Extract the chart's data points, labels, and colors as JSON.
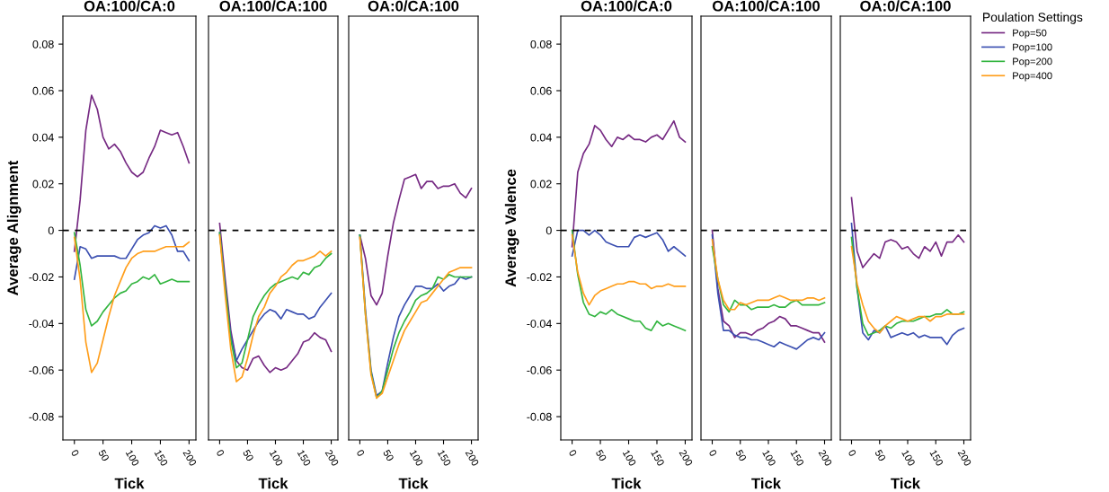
{
  "chart_data": [
    {
      "type": "line",
      "title": "OA:100/CA:0",
      "xlabel": "Tick",
      "ylabel": "Average Alignment",
      "x": [
        0,
        10,
        20,
        30,
        40,
        50,
        60,
        70,
        80,
        90,
        100,
        110,
        120,
        130,
        140,
        150,
        160,
        170,
        180,
        190,
        200
      ],
      "xlim": [
        -20,
        212
      ],
      "xticks": [
        0,
        50,
        100,
        150,
        200
      ],
      "ylim": [
        -0.09,
        0.092
      ],
      "yticks": [
        -0.08,
        -0.06,
        -0.04,
        -0.02,
        0,
        0.02,
        0.04,
        0.06,
        0.08
      ],
      "grid": false,
      "legend": false,
      "line_style": "solid",
      "ref_lines": [
        {
          "axis": "y",
          "value": 0,
          "color": "#000000",
          "line_style": "dashed"
        }
      ],
      "series": [
        {
          "color": "#762a83",
          "values": [
            -0.009,
            0.013,
            0.043,
            0.058,
            0.052,
            0.04,
            0.035,
            0.037,
            0.034,
            0.029,
            0.025,
            0.023,
            0.025,
            0.031,
            0.036,
            0.043,
            0.042,
            0.041,
            0.042,
            0.036,
            0.029
          ]
        },
        {
          "color": "#3c50b1",
          "values": [
            -0.021,
            -0.007,
            -0.008,
            -0.012,
            -0.011,
            -0.011,
            -0.011,
            -0.011,
            -0.012,
            -0.012,
            -0.008,
            -0.004,
            -0.002,
            -0.001,
            0.002,
            0.001,
            0.002,
            -0.002,
            -0.009,
            -0.009,
            -0.013
          ]
        },
        {
          "color": "#33b540",
          "values": [
            -0.001,
            -0.015,
            -0.034,
            -0.041,
            -0.039,
            -0.035,
            -0.032,
            -0.029,
            -0.027,
            -0.026,
            -0.023,
            -0.022,
            -0.02,
            -0.021,
            -0.019,
            -0.023,
            -0.022,
            -0.021,
            -0.022,
            -0.022,
            -0.022
          ]
        },
        {
          "color": "#ff9e1b",
          "values": [
            -0.003,
            -0.021,
            -0.048,
            -0.061,
            -0.057,
            -0.047,
            -0.037,
            -0.028,
            -0.022,
            -0.016,
            -0.012,
            -0.01,
            -0.009,
            -0.009,
            -0.009,
            -0.008,
            -0.007,
            -0.007,
            -0.007,
            -0.007,
            -0.005
          ]
        }
      ]
    },
    {
      "type": "line",
      "title": "OA:100/CA:100",
      "xlabel": "Tick",
      "x": [
        0,
        10,
        20,
        30,
        40,
        50,
        60,
        70,
        80,
        90,
        100,
        110,
        120,
        130,
        140,
        150,
        160,
        170,
        180,
        190,
        200
      ],
      "xlim": [
        -20,
        212
      ],
      "xticks": [
        0,
        50,
        100,
        150,
        200
      ],
      "ylim": [
        -0.09,
        0.092
      ],
      "tick_labels": "x",
      "grid": false,
      "legend": false,
      "line_style": "solid",
      "ref_lines": [
        {
          "axis": "y",
          "value": 0,
          "color": "#000000",
          "line_style": "dashed"
        }
      ],
      "series": [
        {
          "color": "#762a83",
          "values": [
            0.003,
            -0.021,
            -0.043,
            -0.056,
            -0.059,
            -0.06,
            -0.055,
            -0.054,
            -0.058,
            -0.061,
            -0.059,
            -0.06,
            -0.059,
            -0.056,
            -0.053,
            -0.048,
            -0.047,
            -0.044,
            -0.046,
            -0.047,
            -0.052
          ]
        },
        {
          "color": "#3c50b1",
          "values": [
            -0.001,
            -0.024,
            -0.045,
            -0.056,
            -0.051,
            -0.047,
            -0.043,
            -0.039,
            -0.036,
            -0.034,
            -0.035,
            -0.038,
            -0.034,
            -0.035,
            -0.036,
            -0.036,
            -0.038,
            -0.037,
            -0.033,
            -0.03,
            -0.027
          ]
        },
        {
          "color": "#33b540",
          "values": [
            -0.001,
            -0.025,
            -0.047,
            -0.059,
            -0.057,
            -0.047,
            -0.037,
            -0.032,
            -0.028,
            -0.025,
            -0.023,
            -0.022,
            -0.021,
            -0.02,
            -0.021,
            -0.018,
            -0.019,
            -0.016,
            -0.015,
            -0.012,
            -0.01
          ]
        },
        {
          "color": "#ff9e1b",
          "values": [
            -0.002,
            -0.028,
            -0.051,
            -0.065,
            -0.063,
            -0.055,
            -0.045,
            -0.037,
            -0.033,
            -0.027,
            -0.024,
            -0.02,
            -0.018,
            -0.015,
            -0.013,
            -0.013,
            -0.012,
            -0.011,
            -0.009,
            -0.011,
            -0.009
          ]
        }
      ]
    },
    {
      "type": "line",
      "title": "OA:0/CA:100",
      "xlabel": "Tick",
      "x": [
        0,
        10,
        20,
        30,
        40,
        50,
        60,
        70,
        80,
        90,
        100,
        110,
        120,
        130,
        140,
        150,
        160,
        170,
        180,
        190,
        200
      ],
      "xlim": [
        -20,
        212
      ],
      "xticks": [
        0,
        50,
        100,
        150,
        200
      ],
      "ylim": [
        -0.09,
        0.092
      ],
      "tick_labels": "x",
      "grid": false,
      "legend": false,
      "line_style": "solid",
      "ref_lines": [
        {
          "axis": "y",
          "value": 0,
          "color": "#000000",
          "line_style": "dashed"
        }
      ],
      "series": [
        {
          "color": "#762a83",
          "values": [
            -0.002,
            -0.012,
            -0.028,
            -0.032,
            -0.027,
            -0.011,
            0.003,
            0.013,
            0.022,
            0.023,
            0.024,
            0.018,
            0.021,
            0.021,
            0.018,
            0.019,
            0.019,
            0.02,
            0.016,
            0.014,
            0.018
          ]
        },
        {
          "color": "#3c50b1",
          "values": [
            -0.002,
            -0.034,
            -0.06,
            -0.071,
            -0.069,
            -0.057,
            -0.046,
            -0.037,
            -0.032,
            -0.028,
            -0.024,
            -0.024,
            -0.025,
            -0.025,
            -0.023,
            -0.026,
            -0.024,
            -0.023,
            -0.02,
            -0.021,
            -0.02
          ]
        },
        {
          "color": "#33b540",
          "values": [
            -0.002,
            -0.036,
            -0.061,
            -0.072,
            -0.069,
            -0.06,
            -0.051,
            -0.044,
            -0.039,
            -0.035,
            -0.03,
            -0.028,
            -0.027,
            -0.025,
            -0.02,
            -0.021,
            -0.019,
            -0.02,
            -0.02,
            -0.02,
            -0.02
          ]
        },
        {
          "color": "#ff9e1b",
          "values": [
            -0.003,
            -0.036,
            -0.062,
            -0.072,
            -0.07,
            -0.063,
            -0.056,
            -0.049,
            -0.043,
            -0.039,
            -0.035,
            -0.031,
            -0.03,
            -0.027,
            -0.024,
            -0.021,
            -0.018,
            -0.017,
            -0.016,
            -0.016,
            -0.016
          ]
        }
      ]
    },
    {
      "type": "line",
      "title": "OA:100/CA:0",
      "xlabel": "Tick",
      "ylabel": "Average Valence",
      "x": [
        0,
        10,
        20,
        30,
        40,
        50,
        60,
        70,
        80,
        90,
        100,
        110,
        120,
        130,
        140,
        150,
        160,
        170,
        180,
        190,
        200
      ],
      "xlim": [
        -20,
        212
      ],
      "xticks": [
        0,
        50,
        100,
        150,
        200
      ],
      "ylim": [
        -0.09,
        0.092
      ],
      "yticks": [
        -0.08,
        -0.06,
        -0.04,
        -0.02,
        0,
        0.02,
        0.04,
        0.06,
        0.08
      ],
      "grid": false,
      "legend": false,
      "line_style": "solid",
      "ref_lines": [
        {
          "axis": "y",
          "value": 0,
          "color": "#000000",
          "line_style": "dashed"
        }
      ],
      "series": [
        {
          "color": "#762a83",
          "values": [
            -0.007,
            0.025,
            0.033,
            0.037,
            0.045,
            0.043,
            0.039,
            0.036,
            0.04,
            0.039,
            0.041,
            0.039,
            0.039,
            0.038,
            0.04,
            0.041,
            0.039,
            0.043,
            0.047,
            0.04,
            0.038
          ]
        },
        {
          "color": "#3c50b1",
          "values": [
            -0.011,
            0.0,
            0.0,
            -0.002,
            0.0,
            -0.002,
            -0.005,
            -0.006,
            -0.007,
            -0.007,
            -0.007,
            -0.003,
            -0.002,
            -0.003,
            -0.002,
            -0.001,
            -0.004,
            -0.009,
            -0.007,
            -0.009,
            -0.011
          ]
        },
        {
          "color": "#33b540",
          "values": [
            0.0,
            -0.019,
            -0.031,
            -0.036,
            -0.037,
            -0.035,
            -0.036,
            -0.034,
            -0.036,
            -0.037,
            -0.038,
            -0.039,
            -0.039,
            -0.042,
            -0.043,
            -0.039,
            -0.041,
            -0.04,
            -0.041,
            -0.042,
            -0.043
          ]
        },
        {
          "color": "#ff9e1b",
          "values": [
            -0.002,
            -0.018,
            -0.027,
            -0.032,
            -0.028,
            -0.026,
            -0.025,
            -0.024,
            -0.023,
            -0.023,
            -0.022,
            -0.022,
            -0.023,
            -0.023,
            -0.025,
            -0.024,
            -0.024,
            -0.023,
            -0.024,
            -0.024,
            -0.024
          ]
        }
      ]
    },
    {
      "type": "line",
      "title": "OA:100/CA:100",
      "xlabel": "Tick",
      "x": [
        0,
        10,
        20,
        30,
        40,
        50,
        60,
        70,
        80,
        90,
        100,
        110,
        120,
        130,
        140,
        150,
        160,
        170,
        180,
        190,
        200
      ],
      "xlim": [
        -20,
        212
      ],
      "xticks": [
        0,
        50,
        100,
        150,
        200
      ],
      "ylim": [
        -0.09,
        0.092
      ],
      "tick_labels": "x",
      "grid": false,
      "legend": false,
      "line_style": "solid",
      "ref_lines": [
        {
          "axis": "y",
          "value": 0,
          "color": "#000000",
          "line_style": "dashed"
        }
      ],
      "series": [
        {
          "color": "#762a83",
          "values": [
            0.0,
            -0.025,
            -0.039,
            -0.041,
            -0.046,
            -0.044,
            -0.044,
            -0.045,
            -0.043,
            -0.042,
            -0.04,
            -0.039,
            -0.037,
            -0.038,
            -0.041,
            -0.041,
            -0.042,
            -0.043,
            -0.044,
            -0.044,
            -0.048
          ]
        },
        {
          "color": "#3c50b1",
          "values": [
            -0.002,
            -0.027,
            -0.043,
            -0.043,
            -0.045,
            -0.046,
            -0.046,
            -0.047,
            -0.047,
            -0.048,
            -0.049,
            -0.05,
            -0.048,
            -0.049,
            -0.05,
            -0.051,
            -0.049,
            -0.047,
            -0.046,
            -0.047,
            -0.044
          ]
        },
        {
          "color": "#33b540",
          "values": [
            -0.007,
            -0.021,
            -0.032,
            -0.035,
            -0.03,
            -0.032,
            -0.032,
            -0.034,
            -0.033,
            -0.033,
            -0.033,
            -0.032,
            -0.033,
            -0.033,
            -0.031,
            -0.03,
            -0.032,
            -0.032,
            -0.032,
            -0.032,
            -0.031
          ]
        },
        {
          "color": "#ff9e1b",
          "values": [
            -0.004,
            -0.021,
            -0.03,
            -0.034,
            -0.034,
            -0.031,
            -0.032,
            -0.031,
            -0.03,
            -0.03,
            -0.03,
            -0.029,
            -0.028,
            -0.029,
            -0.03,
            -0.03,
            -0.03,
            -0.029,
            -0.029,
            -0.03,
            -0.029
          ]
        }
      ]
    },
    {
      "type": "line",
      "title": "OA:0/CA:100",
      "xlabel": "Tick",
      "legend_title": "Poulation Settings",
      "x": [
        0,
        10,
        20,
        30,
        40,
        50,
        60,
        70,
        80,
        90,
        100,
        110,
        120,
        130,
        140,
        150,
        160,
        170,
        180,
        190,
        200
      ],
      "xlim": [
        -20,
        212
      ],
      "xticks": [
        0,
        50,
        100,
        150,
        200
      ],
      "ylim": [
        -0.09,
        0.092
      ],
      "tick_labels": "x",
      "grid": false,
      "legend": "right",
      "line_style": "solid",
      "ref_lines": [
        {
          "axis": "y",
          "value": 0,
          "color": "#000000",
          "line_style": "dashed"
        }
      ],
      "series": [
        {
          "name": "Pop=50",
          "color": "#762a83",
          "values": [
            0.014,
            -0.009,
            -0.016,
            -0.013,
            -0.01,
            -0.012,
            -0.005,
            -0.004,
            -0.005,
            -0.008,
            -0.007,
            -0.01,
            -0.012,
            -0.007,
            -0.009,
            -0.005,
            -0.011,
            -0.005,
            -0.005,
            -0.002,
            -0.005
          ]
        },
        {
          "name": "Pop=100",
          "color": "#3c50b1",
          "values": [
            0.003,
            -0.025,
            -0.044,
            -0.047,
            -0.043,
            -0.044,
            -0.041,
            -0.046,
            -0.045,
            -0.044,
            -0.045,
            -0.044,
            -0.046,
            -0.045,
            -0.046,
            -0.046,
            -0.046,
            -0.049,
            -0.045,
            -0.043,
            -0.042
          ]
        },
        {
          "name": "Pop=200",
          "color": "#33b540",
          "values": [
            -0.003,
            -0.025,
            -0.04,
            -0.045,
            -0.044,
            -0.043,
            -0.041,
            -0.042,
            -0.04,
            -0.039,
            -0.039,
            -0.039,
            -0.038,
            -0.037,
            -0.037,
            -0.036,
            -0.036,
            -0.034,
            -0.036,
            -0.036,
            -0.035
          ]
        },
        {
          "name": "Pop=400",
          "color": "#ff9e1b",
          "values": [
            -0.007,
            -0.023,
            -0.032,
            -0.039,
            -0.042,
            -0.044,
            -0.041,
            -0.039,
            -0.037,
            -0.038,
            -0.039,
            -0.038,
            -0.037,
            -0.037,
            -0.039,
            -0.037,
            -0.037,
            -0.036,
            -0.036,
            -0.036,
            -0.036
          ]
        }
      ]
    }
  ]
}
